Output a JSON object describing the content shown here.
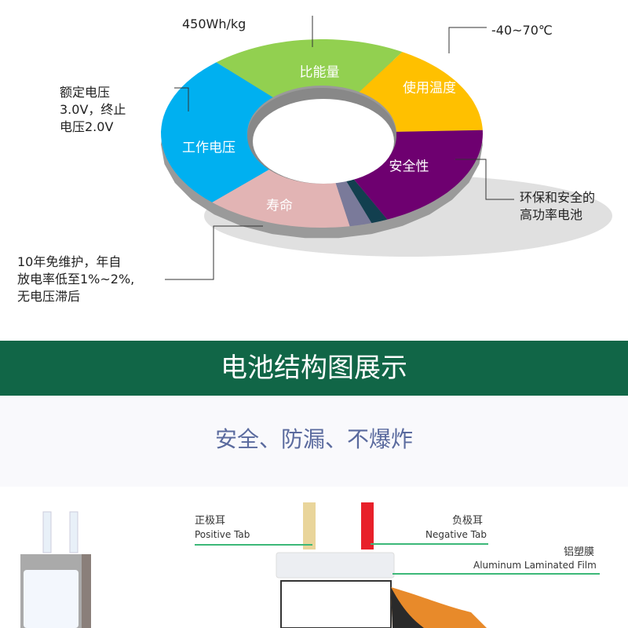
{
  "ring": {
    "segments": [
      {
        "label": "比能量",
        "color": "#92d050"
      },
      {
        "label": "使用温度",
        "color": "#ffc000"
      },
      {
        "label": "安全性",
        "color": "#6e0070"
      },
      {
        "label": "寿命",
        "color": "#e2b4b4"
      },
      {
        "label": "工作电压",
        "color": "#00b0f0"
      }
    ]
  },
  "notes": {
    "energy": "450Wh/kg",
    "temperature": "-40~70℃",
    "safety": "环保和安全的\n高功率电池",
    "life": "10年免维护，年自\n放电率低至1%~2%,\n无电压滞后",
    "voltage": "额定电压\n3.0V，终止\n电压2.0V"
  },
  "banner": {
    "title": "电池结构图展示",
    "color": "#116647"
  },
  "subtitle": "安全、防漏、不爆炸",
  "structure": {
    "positive_cn": "正极耳",
    "positive_en": "Positive Tab",
    "negative_cn": "负极耳",
    "negative_en": "Negative Tab",
    "film_cn": "铝塑膜",
    "film_en": "Aluminum Laminated Film"
  }
}
